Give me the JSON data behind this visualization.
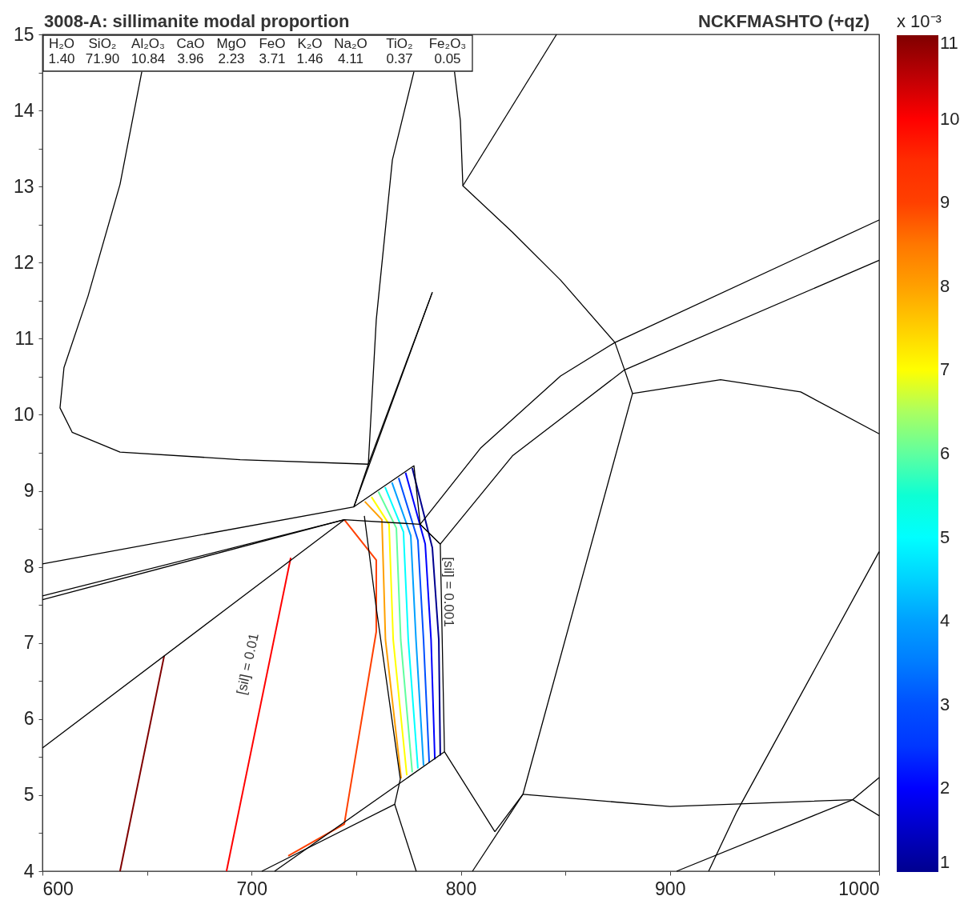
{
  "chart_data": {
    "type": "line",
    "title": "3008-A: sillimanite modal proportion",
    "subtitle": "NCKFMASHTO (+qz)",
    "clabel": "x 10⁻³",
    "clim": [
      1,
      11
    ],
    "cticks": [
      1,
      2,
      3,
      4,
      5,
      6,
      7,
      8,
      9,
      10,
      11
    ],
    "xlim": [
      600,
      1000
    ],
    "xticks": [
      600,
      {
        "value": 650,
        "label": null
      },
      700,
      {
        "value": 750,
        "label": null
      },
      800,
      {
        "value": 850,
        "label": null
      },
      900,
      {
        "value": 950,
        "label": null
      },
      1000
    ],
    "ylim": [
      4,
      15
    ],
    "yticks": [
      4,
      {
        "value": 4.5,
        "label": null
      },
      5,
      {
        "value": 5.5,
        "label": null
      },
      6,
      {
        "value": 6.5,
        "label": null
      },
      7,
      {
        "value": 7.5,
        "label": null
      },
      8,
      {
        "value": 8.5,
        "label": null
      },
      9,
      {
        "value": 9.5,
        "label": null
      },
      10,
      {
        "value": 10.5,
        "label": null
      },
      11,
      {
        "value": 11.5,
        "label": null
      },
      12,
      {
        "value": 12.5,
        "label": null
      },
      13,
      {
        "value": 13.5,
        "label": null
      },
      14,
      {
        "value": 14.5,
        "label": null
      },
      15
    ],
    "grid": false,
    "annotations": [
      "H₂O\n1.40",
      "SiO₂\n71.90",
      "Al₂O₃\n10.84",
      "CaO\n3.96",
      "MgO\n2.23",
      "FeO\n3.71",
      "K₂O\n1.46",
      "Na₂O\n4.11",
      "TiO₂\n0.37",
      "Fe₂O₃\n0.05",
      "[sil] = 0.01",
      "[sil] = 0.001"
    ],
    "series": [
      {
        "color": "#00008f",
        "x": [
          776.8,
          786.4,
          789.5,
          790.2
        ],
        "values": [
          9.3,
          8.25,
          7.04,
          5.52
        ]
      },
      {
        "color": "#0000ff",
        "x": [
          773.6,
          783.0,
          785.8,
          787.6
        ],
        "values": [
          9.24,
          8.3,
          7.04,
          5.47
        ]
      },
      {
        "color": "#0050ff",
        "x": [
          770.3,
          779.5,
          782.2,
          784.9
        ],
        "values": [
          9.17,
          8.35,
          7.04,
          5.43
        ]
      },
      {
        "color": "#00a0ff",
        "x": [
          767.1,
          776.1,
          778.6,
          782.2
        ],
        "values": [
          9.11,
          8.41,
          7.04,
          5.39
        ]
      },
      {
        "color": "#00ffff",
        "x": [
          763.8,
          772.6,
          774.9,
          779.5
        ],
        "values": [
          9.05,
          8.46,
          7.04,
          5.35
        ]
      },
      {
        "color": "#60ff9f",
        "x": [
          760.6,
          769.2,
          771.3,
          776.8
        ],
        "values": [
          8.99,
          8.51,
          7.04,
          5.3
        ]
      },
      {
        "color": "#ffff00",
        "x": [
          757.3,
          765.7,
          767.7,
          774.2
        ],
        "values": [
          8.92,
          8.56,
          7.04,
          5.26
        ]
      },
      {
        "color": "#ffa000",
        "x": [
          754.1,
          762.3,
          764.0,
          771.5
        ],
        "values": [
          8.86,
          8.62,
          7.04,
          5.22
        ]
      },
      {
        "color": "#ff4000",
        "x": [
          744.3,
          759.6,
          759.6,
          744.3,
          717.5
        ],
        "values": [
          8.62,
          8.09,
          7.15,
          4.62,
          4.2
        ]
      },
      {
        "color": "#ff0000",
        "x": [
          688.0,
          718.7
        ],
        "values": [
          4.0,
          8.12
        ]
      },
      {
        "color": "#800000",
        "x": [
          637.1,
          658.2
        ],
        "values": [
          4.0,
          6.83
        ]
      },
      {
        "color": "#000000",
        "x": [
          647.5,
          637.1,
          621.8,
          610.3,
          608.4,
          614.2,
          637.1,
          694.5,
          755.8
        ],
        "values": [
          14.51,
          13.03,
          11.56,
          10.62,
          10.09,
          9.77,
          9.51,
          9.41,
          9.35
        ]
      },
      {
        "color": "#000000",
        "x": [
          777.6,
          767.3,
          759.6,
          755.8,
          748.9
        ],
        "values": [
          14.51,
          13.35,
          11.25,
          9.35,
          8.79
        ]
      },
      {
        "color": "#000000",
        "x": [
          797.0,
          799.8,
          801.0,
          824.7,
          847.7,
          873.7,
          878.3,
          882.1,
          924.2,
          962.5,
          1000
        ],
        "values": [
          14.51,
          13.87,
          13.01,
          12.4,
          11.77,
          10.95,
          10.59,
          10.28,
          10.46,
          10.3,
          9.75
        ]
      },
      {
        "color": "#000000",
        "x": [
          801.0,
          845.8
        ],
        "values": [
          13.01,
          15.0
        ]
      },
      {
        "color": "#000000",
        "x": [
          780.6,
          809.4,
          847.7,
          873.7,
          1000
        ],
        "values": [
          8.56,
          9.56,
          10.51,
          10.95,
          12.56
        ]
      },
      {
        "color": "#000000",
        "x": [
          790.2,
          824.7,
          878.3,
          1000
        ],
        "values": [
          8.3,
          9.46,
          10.59,
          12.03
        ]
      },
      {
        "color": "#000000",
        "x": [
          816.3,
          829.7,
          882.1
        ],
        "values": [
          4.52,
          5.01,
          10.28
        ]
      },
      {
        "color": "#000000",
        "x": [
          805.6,
          829.7
        ],
        "values": [
          4.0,
          5.01
        ]
      },
      {
        "color": "#000000",
        "x": [
          600,
          748.9,
          786.4
        ],
        "values": [
          8.04,
          8.79,
          11.61
        ]
      },
      {
        "color": "#000000",
        "x": [
          755.8,
          786.4
        ],
        "values": [
          9.35,
          11.61
        ]
      },
      {
        "color": "#000000",
        "x": [
          748.9,
          777.6,
          780.6,
          790.2
        ],
        "values": [
          8.79,
          9.33,
          8.56,
          8.3
        ]
      },
      {
        "color": "#000000",
        "x": [
          600,
          744.3
        ],
        "values": [
          7.62,
          8.62
        ]
      },
      {
        "color": "#000000",
        "x": [
          600,
          744.3
        ],
        "values": [
          7.57,
          8.62
        ]
      },
      {
        "color": "#000000",
        "x": [
          600,
          744.3,
          780.6,
          790.2,
          792.2,
          816.3
        ],
        "values": [
          5.62,
          8.62,
          8.56,
          8.3,
          5.57,
          4.52
        ]
      },
      {
        "color": "#000000",
        "x": [
          753.9,
          759.6,
          771.1,
          768.4,
          704.9
        ],
        "values": [
          8.67,
          7.46,
          5.21,
          4.88,
          4.0
        ]
      },
      {
        "color": "#000000",
        "x": [
          792.2,
          711.0
        ],
        "values": [
          5.57,
          4.0
        ]
      },
      {
        "color": "#000000",
        "x": [
          768.4,
          778.7
        ],
        "values": [
          4.88,
          4.0
        ]
      },
      {
        "color": "#000000",
        "x": [
          829.7,
          900,
          987.4,
          1000
        ],
        "values": [
          5.01,
          4.85,
          4.94,
          5.23
        ]
      },
      {
        "color": "#000000",
        "x": [
          903.2,
          987.4,
          1000
        ],
        "values": [
          4.0,
          4.94,
          4.73
        ]
      },
      {
        "color": "#000000",
        "x": [
          1000,
          931.9,
          918.5
        ],
        "values": [
          8.2,
          4.78,
          4.0
        ]
      }
    ]
  }
}
